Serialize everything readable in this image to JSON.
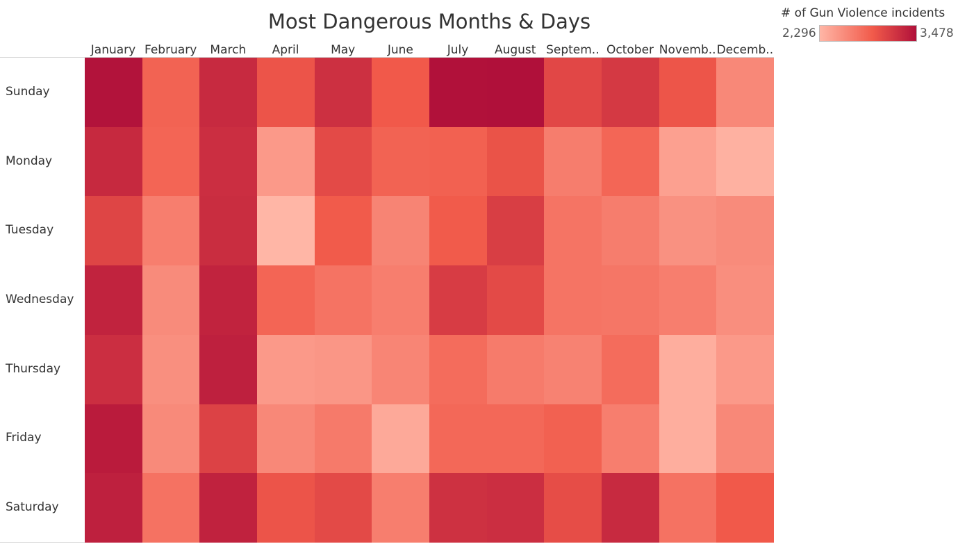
{
  "chart_data": {
    "type": "heatmap",
    "title": "Most Dangerous Months & Days",
    "x_categories": [
      "January",
      "February",
      "March",
      "April",
      "May",
      "June",
      "July",
      "August",
      "Septem..",
      "October",
      "Novemb..",
      "Decemb.."
    ],
    "y_categories": [
      "Sunday",
      "Monday",
      "Tuesday",
      "Wednesday",
      "Thursday",
      "Friday",
      "Saturday"
    ],
    "values": [
      [
        3460,
        2880,
        3290,
        2990,
        3250,
        2950,
        3470,
        3478,
        3080,
        3180,
        2980,
        2620
      ],
      [
        3300,
        2870,
        3260,
        2500,
        3060,
        2880,
        2900,
        3000,
        2700,
        2860,
        2450,
        2330
      ],
      [
        3100,
        2690,
        3270,
        2296,
        2940,
        2650,
        2940,
        3150,
        2760,
        2700,
        2560,
        2600
      ],
      [
        3340,
        2600,
        3340,
        2870,
        2770,
        2690,
        3160,
        3060,
        2760,
        2750,
        2690,
        2580
      ],
      [
        3260,
        2570,
        3360,
        2500,
        2520,
        2640,
        2820,
        2710,
        2660,
        2820,
        2350,
        2500
      ],
      [
        3400,
        2610,
        3120,
        2620,
        2720,
        2390,
        2850,
        2850,
        2900,
        2690,
        2350,
        2620
      ],
      [
        3360,
        2780,
        3350,
        2990,
        3060,
        2690,
        3240,
        3260,
        3040,
        3290,
        2780,
        2950
      ]
    ],
    "colorbar": {
      "label": "# of Gun Violence incidents",
      "min": 2296,
      "max": 3478,
      "min_label": "2,296",
      "max_label": "3,478",
      "color_low": "#ffb6a6",
      "color_mid": "#f15a4a",
      "color_high": "#b0103a"
    },
    "legend_position": "top-right",
    "grid": false
  }
}
